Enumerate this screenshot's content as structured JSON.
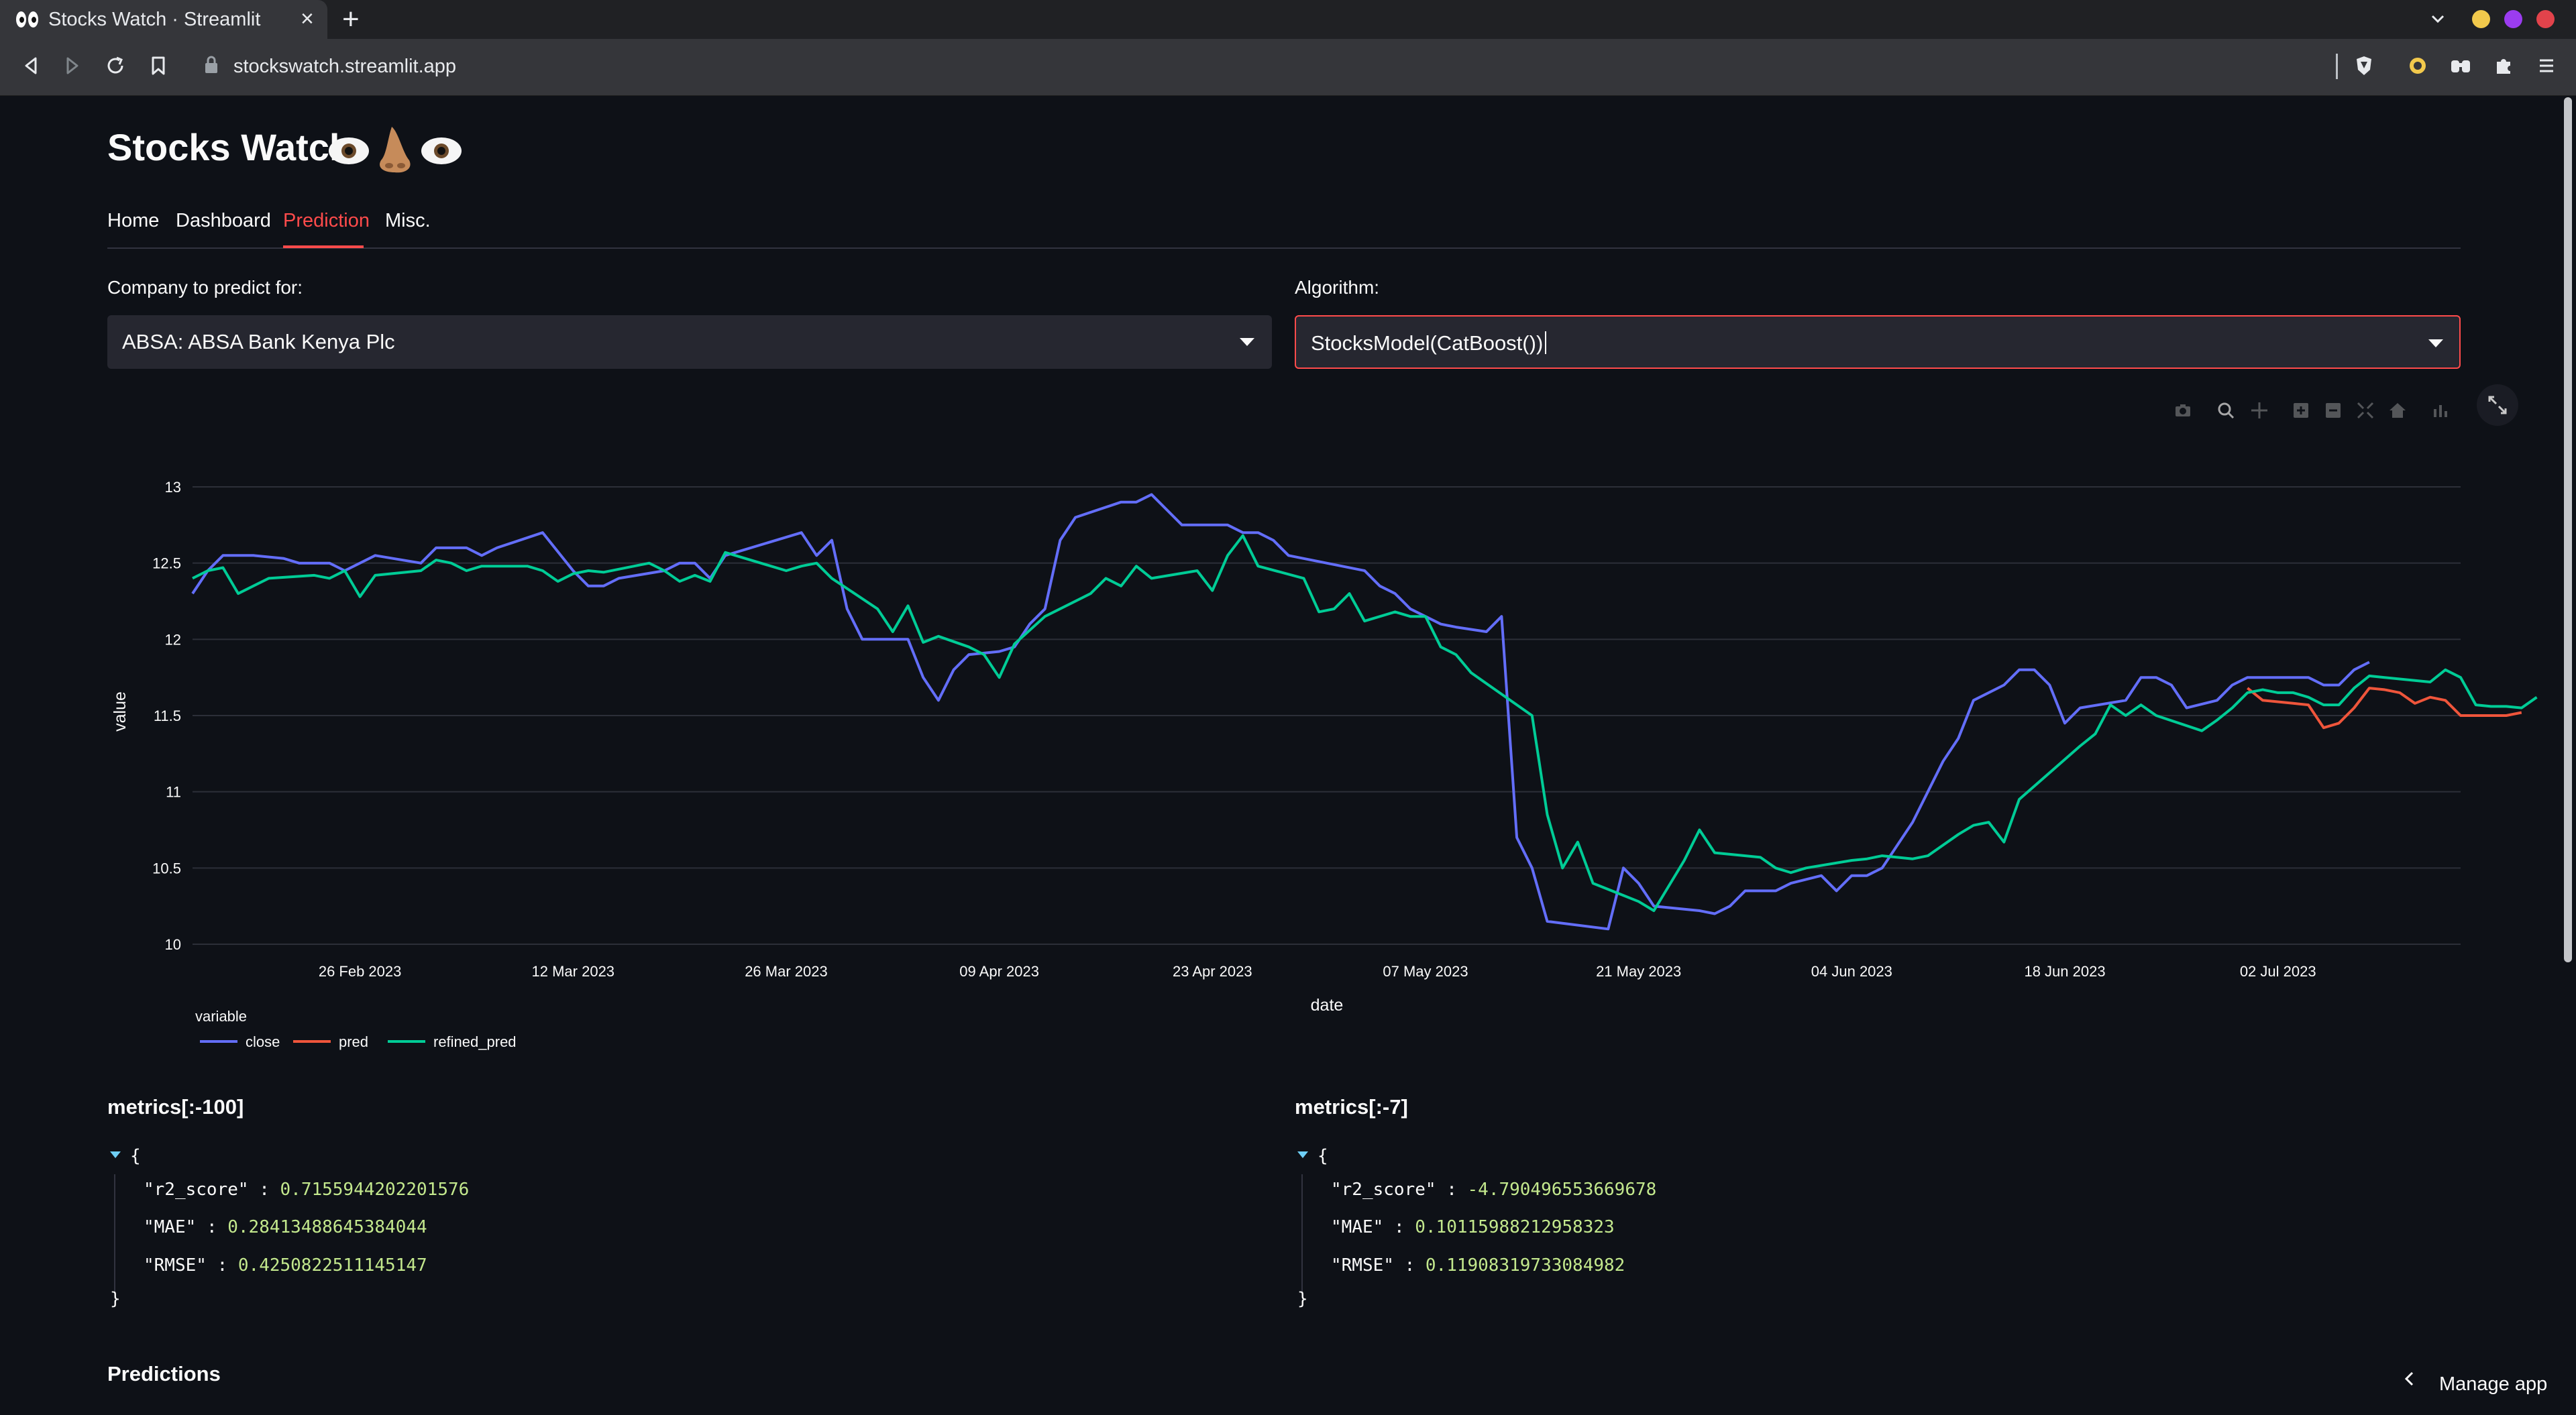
{
  "browser": {
    "tab_title": "Stocks Watch · Streamlit",
    "close_glyph": "×",
    "new_tab_glyph": "+",
    "url": "stockswatch.streamlit.app",
    "window_dots": [
      "#f2c94c",
      "#9b3cf0",
      "#e2434b"
    ]
  },
  "app": {
    "title": "Stocks Watch",
    "title_emoji": [
      "eye",
      "nose",
      "eye"
    ],
    "nav": [
      "Home",
      "Dashboard",
      "Prediction",
      "Misc."
    ],
    "active_nav": "Prediction",
    "company_label": "Company to predict for:",
    "company_value": "ABSA: ABSA Bank Kenya Plc",
    "algorithm_label": "Algorithm:",
    "algorithm_value": "StocksModel(CatBoost())",
    "modebar_icons": [
      "camera-icon",
      "zoom-icon",
      "pan-icon",
      "zoom-in-icon",
      "zoom-out-icon",
      "autoscale-icon",
      "reset-axes-icon",
      "bar-chart-icon"
    ],
    "metrics_left_title": "metrics[:-100]",
    "metrics_right_title": "metrics[:-7]",
    "metrics_left": [
      {
        "key": "\"r2_score\"",
        "value": "0.7155944202201576"
      },
      {
        "key": "\"MAE\"",
        "value": "0.28413488645384044"
      },
      {
        "key": "\"RMSE\"",
        "value": "0.4250822511145147"
      }
    ],
    "metrics_right": [
      {
        "key": "\"r2_score\"",
        "value": "-4.790496553669678"
      },
      {
        "key": "\"MAE\"",
        "value": "0.10115988212958323"
      },
      {
        "key": "\"RMSE\"",
        "value": "0.11908319733084982"
      }
    ],
    "json_open": "{",
    "json_close": "}",
    "json_sep": ":",
    "predictions_heading": "Predictions",
    "manage_app": "Manage app"
  },
  "chart_data": {
    "type": "line",
    "xlabel": "date",
    "ylabel": "value",
    "legend_title": "variable",
    "legend_position": "bottom-left",
    "grid": true,
    "x_range": [
      "2023-02-15",
      "2023-07-14"
    ],
    "ylim": [
      10,
      13
    ],
    "y_ticks": [
      10,
      10.5,
      11,
      11.5,
      12,
      12.5,
      13
    ],
    "x_ticks": [
      {
        "date": "2023-02-26",
        "label": "26 Feb 2023"
      },
      {
        "date": "2023-03-12",
        "label": "12 Mar 2023"
      },
      {
        "date": "2023-03-26",
        "label": "26 Mar 2023"
      },
      {
        "date": "2023-04-09",
        "label": "09 Apr 2023"
      },
      {
        "date": "2023-04-23",
        "label": "23 Apr 2023"
      },
      {
        "date": "2023-05-07",
        "label": "07 May 2023"
      },
      {
        "date": "2023-05-21",
        "label": "21 May 2023"
      },
      {
        "date": "2023-06-04",
        "label": "04 Jun 2023"
      },
      {
        "date": "2023-06-18",
        "label": "18 Jun 2023"
      },
      {
        "date": "2023-07-02",
        "label": "02 Jul 2023"
      }
    ],
    "series": [
      {
        "name": "close",
        "color": "#636efa",
        "points": [
          [
            "2023-02-15",
            12.3
          ],
          [
            "2023-02-16",
            12.45
          ],
          [
            "2023-02-17",
            12.55
          ],
          [
            "2023-02-19",
            12.55
          ],
          [
            "2023-02-21",
            12.53
          ],
          [
            "2023-02-22",
            12.5
          ],
          [
            "2023-02-24",
            12.5
          ],
          [
            "2023-02-25",
            12.45
          ],
          [
            "2023-02-27",
            12.55
          ],
          [
            "2023-03-02",
            12.5
          ],
          [
            "2023-03-03",
            12.6
          ],
          [
            "2023-03-05",
            12.6
          ],
          [
            "2023-03-06",
            12.55
          ],
          [
            "2023-03-07",
            12.6
          ],
          [
            "2023-03-10",
            12.7
          ],
          [
            "2023-03-12",
            12.45
          ],
          [
            "2023-03-13",
            12.35
          ],
          [
            "2023-03-14",
            12.35
          ],
          [
            "2023-03-15",
            12.4
          ],
          [
            "2023-03-18",
            12.45
          ],
          [
            "2023-03-19",
            12.5
          ],
          [
            "2023-03-20",
            12.5
          ],
          [
            "2023-03-21",
            12.4
          ],
          [
            "2023-03-22",
            12.55
          ],
          [
            "2023-03-27",
            12.7
          ],
          [
            "2023-03-28",
            12.55
          ],
          [
            "2023-03-29",
            12.65
          ],
          [
            "2023-03-30",
            12.2
          ],
          [
            "2023-03-31",
            12.0
          ],
          [
            "2023-04-03",
            12.0
          ],
          [
            "2023-04-04",
            11.75
          ],
          [
            "2023-04-05",
            11.6
          ],
          [
            "2023-04-06",
            11.8
          ],
          [
            "2023-04-07",
            11.9
          ],
          [
            "2023-04-09",
            11.92
          ],
          [
            "2023-04-10",
            11.95
          ],
          [
            "2023-04-11",
            12.1
          ],
          [
            "2023-04-12",
            12.2
          ],
          [
            "2023-04-13",
            12.65
          ],
          [
            "2023-04-14",
            12.8
          ],
          [
            "2023-04-17",
            12.9
          ],
          [
            "2023-04-18",
            12.9
          ],
          [
            "2023-04-19",
            12.95
          ],
          [
            "2023-04-21",
            12.75
          ],
          [
            "2023-04-24",
            12.75
          ],
          [
            "2023-04-25",
            12.7
          ],
          [
            "2023-04-26",
            12.7
          ],
          [
            "2023-04-27",
            12.65
          ],
          [
            "2023-04-28",
            12.55
          ],
          [
            "2023-05-03",
            12.45
          ],
          [
            "2023-05-04",
            12.35
          ],
          [
            "2023-05-05",
            12.3
          ],
          [
            "2023-05-06",
            12.2
          ],
          [
            "2023-05-08",
            12.1
          ],
          [
            "2023-05-09",
            12.08
          ],
          [
            "2023-05-11",
            12.05
          ],
          [
            "2023-05-12",
            12.15
          ],
          [
            "2023-05-13",
            10.7
          ],
          [
            "2023-05-14",
            10.5
          ],
          [
            "2023-05-15",
            10.15
          ],
          [
            "2023-05-19",
            10.1
          ],
          [
            "2023-05-20",
            10.5
          ],
          [
            "2023-05-21",
            10.4
          ],
          [
            "2023-05-22",
            10.25
          ],
          [
            "2023-05-25",
            10.22
          ],
          [
            "2023-05-26",
            10.2
          ],
          [
            "2023-05-27",
            10.25
          ],
          [
            "2023-05-28",
            10.35
          ],
          [
            "2023-05-30",
            10.35
          ],
          [
            "2023-05-31",
            10.4
          ],
          [
            "2023-06-02",
            10.45
          ],
          [
            "2023-06-03",
            10.35
          ],
          [
            "2023-06-04",
            10.45
          ],
          [
            "2023-06-05",
            10.45
          ],
          [
            "2023-06-06",
            10.5
          ],
          [
            "2023-06-08",
            10.8
          ],
          [
            "2023-06-09",
            11.0
          ],
          [
            "2023-06-10",
            11.2
          ],
          [
            "2023-06-11",
            11.35
          ],
          [
            "2023-06-12",
            11.6
          ],
          [
            "2023-06-14",
            11.7
          ],
          [
            "2023-06-15",
            11.8
          ],
          [
            "2023-06-16",
            11.8
          ],
          [
            "2023-06-17",
            11.7
          ],
          [
            "2023-06-18",
            11.45
          ],
          [
            "2023-06-19",
            11.55
          ],
          [
            "2023-06-22",
            11.6
          ],
          [
            "2023-06-23",
            11.75
          ],
          [
            "2023-06-24",
            11.75
          ],
          [
            "2023-06-25",
            11.7
          ],
          [
            "2023-06-26",
            11.55
          ],
          [
            "2023-06-28",
            11.6
          ],
          [
            "2023-06-29",
            11.7
          ],
          [
            "2023-06-30",
            11.75
          ],
          [
            "2023-07-01",
            11.75
          ],
          [
            "2023-07-02",
            11.75
          ],
          [
            "2023-07-03",
            11.75
          ],
          [
            "2023-07-04",
            11.75
          ],
          [
            "2023-07-05",
            11.7
          ],
          [
            "2023-07-06",
            11.7
          ],
          [
            "2023-07-07",
            11.8
          ],
          [
            "2023-07-08",
            11.85
          ]
        ]
      },
      {
        "name": "pred",
        "color": "#ef553b",
        "points": [
          [
            "2023-06-30",
            11.68
          ],
          [
            "2023-07-01",
            11.6
          ],
          [
            "2023-07-02",
            11.59
          ],
          [
            "2023-07-03",
            11.58
          ],
          [
            "2023-07-04",
            11.57
          ],
          [
            "2023-07-05",
            11.42
          ],
          [
            "2023-07-06",
            11.45
          ],
          [
            "2023-07-07",
            11.55
          ],
          [
            "2023-07-08",
            11.68
          ],
          [
            "2023-07-09",
            11.67
          ],
          [
            "2023-07-10",
            11.65
          ],
          [
            "2023-07-11",
            11.58
          ],
          [
            "2023-07-12",
            11.62
          ],
          [
            "2023-07-13",
            11.6
          ],
          [
            "2023-07-14",
            11.5
          ],
          [
            "2023-07-15",
            11.5
          ],
          [
            "2023-07-16",
            11.5
          ],
          [
            "2023-07-17",
            11.5
          ],
          [
            "2023-07-18",
            11.52
          ]
        ]
      },
      {
        "name": "refined_pred",
        "color": "#00cc96",
        "points": [
          [
            "2023-02-15",
            12.4
          ],
          [
            "2023-02-16",
            12.45
          ],
          [
            "2023-02-17",
            12.47
          ],
          [
            "2023-02-18",
            12.3
          ],
          [
            "2023-02-20",
            12.4
          ],
          [
            "2023-02-23",
            12.42
          ],
          [
            "2023-02-24",
            12.4
          ],
          [
            "2023-02-25",
            12.45
          ],
          [
            "2023-02-26",
            12.28
          ],
          [
            "2023-02-27",
            12.42
          ],
          [
            "2023-03-02",
            12.45
          ],
          [
            "2023-03-03",
            12.52
          ],
          [
            "2023-03-04",
            12.5
          ],
          [
            "2023-03-05",
            12.45
          ],
          [
            "2023-03-06",
            12.48
          ],
          [
            "2023-03-09",
            12.48
          ],
          [
            "2023-03-10",
            12.45
          ],
          [
            "2023-03-11",
            12.38
          ],
          [
            "2023-03-12",
            12.43
          ],
          [
            "2023-03-13",
            12.45
          ],
          [
            "2023-03-14",
            12.44
          ],
          [
            "2023-03-17",
            12.5
          ],
          [
            "2023-03-18",
            12.45
          ],
          [
            "2023-03-19",
            12.38
          ],
          [
            "2023-03-20",
            12.42
          ],
          [
            "2023-03-21",
            12.38
          ],
          [
            "2023-03-22",
            12.57
          ],
          [
            "2023-03-25",
            12.48
          ],
          [
            "2023-03-26",
            12.45
          ],
          [
            "2023-03-27",
            12.48
          ],
          [
            "2023-03-28",
            12.5
          ],
          [
            "2023-03-29",
            12.4
          ],
          [
            "2023-04-01",
            12.2
          ],
          [
            "2023-04-02",
            12.05
          ],
          [
            "2023-04-03",
            12.22
          ],
          [
            "2023-04-04",
            11.98
          ],
          [
            "2023-04-05",
            12.02
          ],
          [
            "2023-04-07",
            11.95
          ],
          [
            "2023-04-08",
            11.9
          ],
          [
            "2023-04-09",
            11.75
          ],
          [
            "2023-04-10",
            11.97
          ],
          [
            "2023-04-12",
            12.15
          ],
          [
            "2023-04-15",
            12.3
          ],
          [
            "2023-04-16",
            12.4
          ],
          [
            "2023-04-17",
            12.35
          ],
          [
            "2023-04-18",
            12.48
          ],
          [
            "2023-04-19",
            12.4
          ],
          [
            "2023-04-22",
            12.45
          ],
          [
            "2023-04-23",
            12.32
          ],
          [
            "2023-04-24",
            12.55
          ],
          [
            "2023-04-25",
            12.68
          ],
          [
            "2023-04-26",
            12.48
          ],
          [
            "2023-04-29",
            12.4
          ],
          [
            "2023-04-30",
            12.18
          ],
          [
            "2023-05-01",
            12.2
          ],
          [
            "2023-05-02",
            12.3
          ],
          [
            "2023-05-03",
            12.12
          ],
          [
            "2023-05-05",
            12.18
          ],
          [
            "2023-05-06",
            12.15
          ],
          [
            "2023-05-07",
            12.15
          ],
          [
            "2023-05-08",
            11.95
          ],
          [
            "2023-05-09",
            11.9
          ],
          [
            "2023-05-10",
            11.78
          ],
          [
            "2023-05-14",
            11.5
          ],
          [
            "2023-05-15",
            10.85
          ],
          [
            "2023-05-16",
            10.5
          ],
          [
            "2023-05-17",
            10.67
          ],
          [
            "2023-05-18",
            10.4
          ],
          [
            "2023-05-21",
            10.28
          ],
          [
            "2023-05-22",
            10.22
          ],
          [
            "2023-05-24",
            10.55
          ],
          [
            "2023-05-25",
            10.75
          ],
          [
            "2023-05-26",
            10.6
          ],
          [
            "2023-05-29",
            10.57
          ],
          [
            "2023-05-30",
            10.5
          ],
          [
            "2023-05-31",
            10.47
          ],
          [
            "2023-06-01",
            10.5
          ],
          [
            "2023-06-04",
            10.55
          ],
          [
            "2023-06-05",
            10.56
          ],
          [
            "2023-06-06",
            10.58
          ],
          [
            "2023-06-07",
            10.57
          ],
          [
            "2023-06-08",
            10.56
          ],
          [
            "2023-06-09",
            10.58
          ],
          [
            "2023-06-11",
            10.72
          ],
          [
            "2023-06-12",
            10.78
          ],
          [
            "2023-06-13",
            10.8
          ],
          [
            "2023-06-14",
            10.67
          ],
          [
            "2023-06-15",
            10.95
          ],
          [
            "2023-06-19",
            11.3
          ],
          [
            "2023-06-20",
            11.38
          ],
          [
            "2023-06-21",
            11.57
          ],
          [
            "2023-06-22",
            11.5
          ],
          [
            "2023-06-23",
            11.57
          ],
          [
            "2023-06-24",
            11.5
          ],
          [
            "2023-06-27",
            11.4
          ],
          [
            "2023-06-28",
            11.47
          ],
          [
            "2023-06-29",
            11.55
          ],
          [
            "2023-06-30",
            11.65
          ],
          [
            "2023-07-01",
            11.67
          ],
          [
            "2023-07-02",
            11.65
          ],
          [
            "2023-07-03",
            11.65
          ],
          [
            "2023-07-04",
            11.62
          ],
          [
            "2023-07-05",
            11.57
          ],
          [
            "2023-07-06",
            11.57
          ],
          [
            "2023-07-07",
            11.68
          ],
          [
            "2023-07-08",
            11.76
          ],
          [
            "2023-07-09",
            11.75
          ],
          [
            "2023-07-11",
            11.73
          ],
          [
            "2023-07-12",
            11.72
          ],
          [
            "2023-07-13",
            11.8
          ],
          [
            "2023-07-14",
            11.75
          ],
          [
            "2023-07-15",
            11.57
          ],
          [
            "2023-07-16",
            11.56
          ],
          [
            "2023-07-17",
            11.56
          ],
          [
            "2023-07-18",
            11.55
          ],
          [
            "2023-07-19",
            11.62
          ]
        ]
      }
    ]
  }
}
